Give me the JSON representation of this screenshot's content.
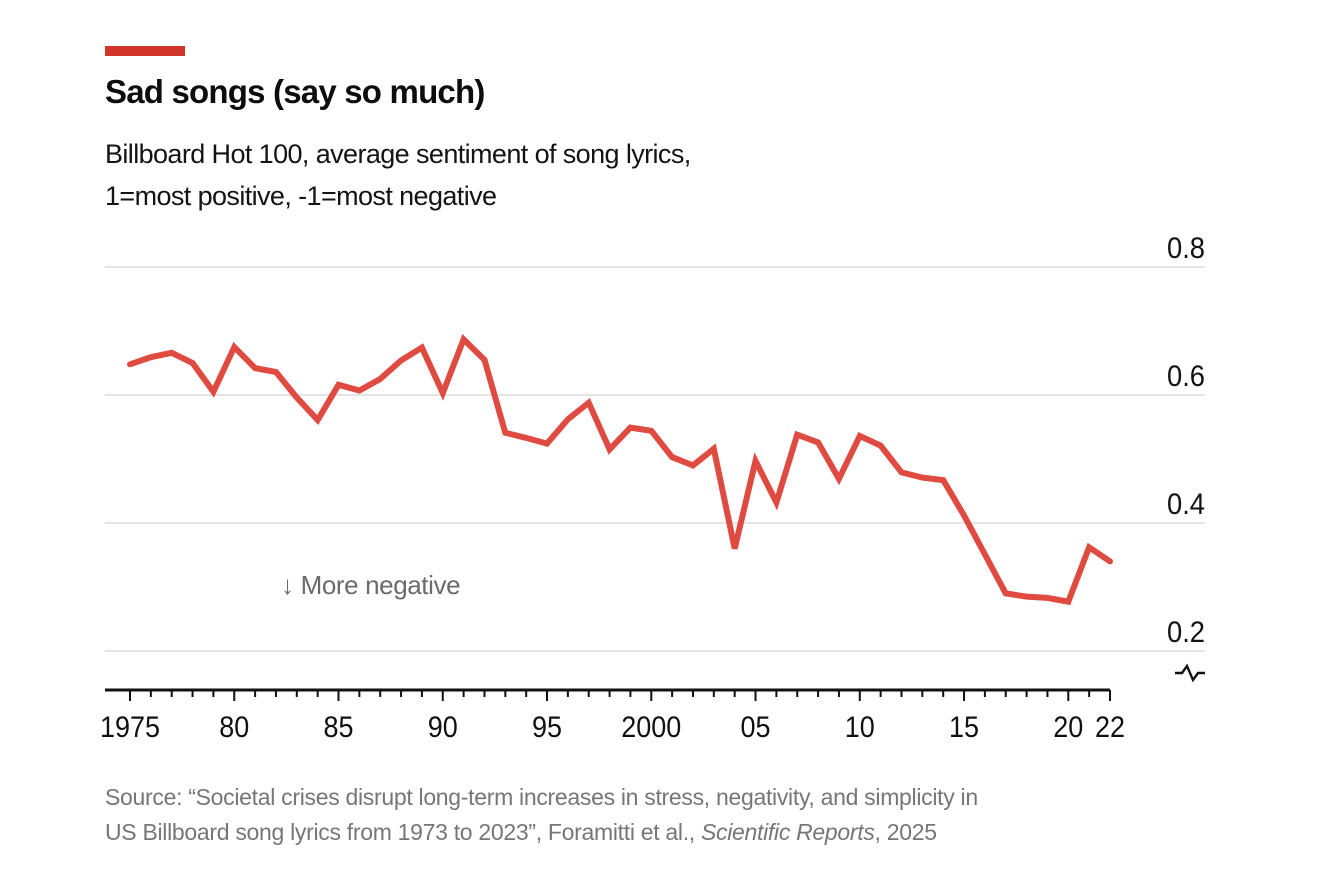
{
  "header": {
    "title": "Sad songs (say so much)",
    "subtitle_line1": "Billboard Hot 100, average sentiment of song lyrics,",
    "subtitle_line2": "1=most positive, -1=most negative"
  },
  "annotation": {
    "arrow": "↓",
    "text": "More negative"
  },
  "source": {
    "line1": "Source: “Societal crises disrupt long-term increases in stress, negativity, and simplicity in",
    "line2_pre": "US Billboard song lyrics from 1973 to 2023”, Foramitti et al., ",
    "line2_italic": "Scientific Reports",
    "line2_suffix": ", 2025"
  },
  "colors": {
    "kicker": "#d0342a",
    "line": "#e04b41",
    "grid": "#dcdcdc",
    "axis": "#111111",
    "tick_label": "#111111",
    "annotation_gray": "#6b6b6b",
    "source_gray": "#767676"
  },
  "chart_data": {
    "type": "line",
    "title": "Sad songs (say so much)",
    "subtitle": "Billboard Hot 100, average sentiment of song lyrics, 1=most positive, -1=most negative",
    "x": [
      1975,
      1976,
      1977,
      1978,
      1979,
      1980,
      1981,
      1982,
      1983,
      1984,
      1985,
      1986,
      1987,
      1988,
      1989,
      1990,
      1991,
      1992,
      1993,
      1994,
      1995,
      1996,
      1997,
      1998,
      1999,
      2000,
      2001,
      2002,
      2003,
      2004,
      2005,
      2006,
      2007,
      2008,
      2009,
      2010,
      2011,
      2012,
      2013,
      2014,
      2015,
      2016,
      2017,
      2018,
      2019,
      2020,
      2021,
      2022
    ],
    "values": [
      0.648,
      0.659,
      0.666,
      0.65,
      0.605,
      0.675,
      0.642,
      0.636,
      0.596,
      0.561,
      0.616,
      0.607,
      0.625,
      0.654,
      0.674,
      0.603,
      0.687,
      0.655,
      0.541,
      0.533,
      0.524,
      0.562,
      0.588,
      0.515,
      0.549,
      0.544,
      0.503,
      0.49,
      0.516,
      0.36,
      0.497,
      0.432,
      0.538,
      0.526,
      0.469,
      0.536,
      0.521,
      0.479,
      0.471,
      0.467,
      0.412,
      0.351,
      0.29,
      0.285,
      0.283,
      0.277,
      0.362,
      0.34
    ],
    "x_range": [
      1975,
      2022
    ],
    "ylim": [
      0.2,
      0.8
    ],
    "yticks": [
      0.8,
      0.6,
      0.4,
      0.2
    ],
    "ytick_labels": [
      "0.8",
      "0.6",
      "0.4",
      "0.2"
    ],
    "axis_break": true,
    "grid": "horizontal",
    "legend": "none",
    "xticks": [
      {
        "year": 1975,
        "label": "1975"
      },
      {
        "year": 1980,
        "label": "80"
      },
      {
        "year": 1985,
        "label": "85"
      },
      {
        "year": 1990,
        "label": "90"
      },
      {
        "year": 1995,
        "label": "95"
      },
      {
        "year": 2000,
        "label": "2000"
      },
      {
        "year": 2005,
        "label": "05"
      },
      {
        "year": 2010,
        "label": "10"
      },
      {
        "year": 2015,
        "label": "15"
      },
      {
        "year": 2020,
        "label": "20"
      },
      {
        "year": 2022,
        "label": "22"
      }
    ]
  }
}
